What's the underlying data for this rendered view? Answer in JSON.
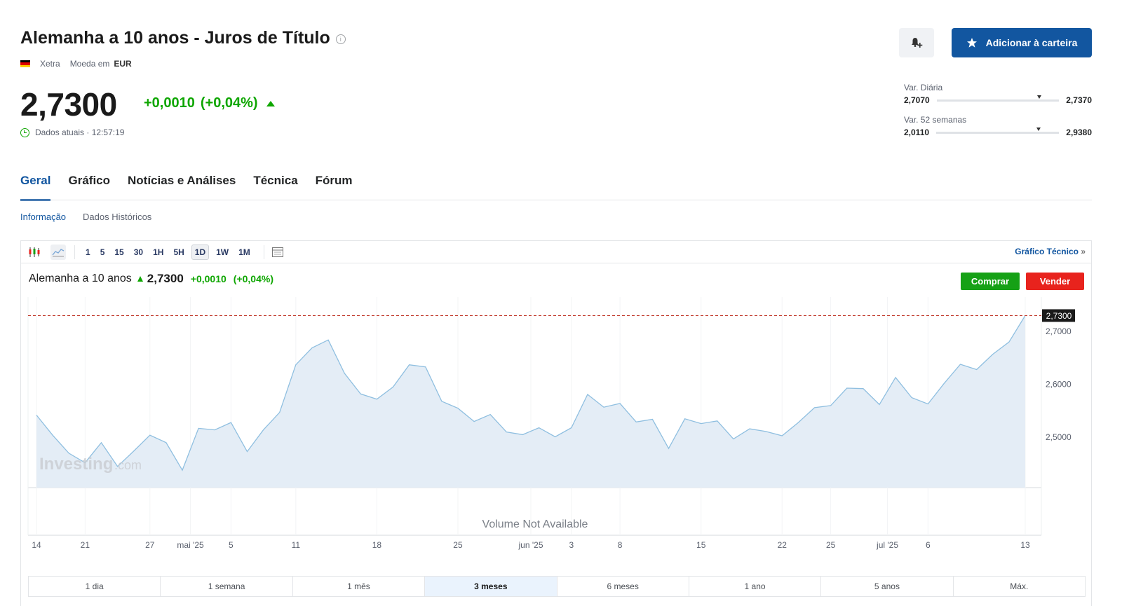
{
  "header": {
    "title": "Alemanha a 10 anos - Juros de Título",
    "exchange": "Xetra",
    "currency_prefix": "Moeda em",
    "currency": "EUR",
    "alert_button_icon": "bell-plus-icon",
    "add_button_label": "Adicionar à carteira"
  },
  "quote": {
    "price": "2,7300",
    "change": "+0,0010",
    "change_pct": "(+0,04%)",
    "time_label": "Dados atuais · 12:57:19"
  },
  "ranges": {
    "daily": {
      "label": "Var. Diária",
      "low": "2,7070",
      "high": "2,7370",
      "position": 0.84
    },
    "week52": {
      "label": "Var. 52 semanas",
      "low": "2,0110",
      "high": "2,9380",
      "position": 0.83
    }
  },
  "tabs": [
    "Geral",
    "Gráfico",
    "Notícias e Análises",
    "Técnica",
    "Fórum"
  ],
  "active_tab": "Geral",
  "subtabs": [
    "Informação",
    "Dados Históricos"
  ],
  "chart_toolbar": {
    "intervals": [
      "1",
      "5",
      "15",
      "30",
      "1H",
      "5H",
      "1D",
      "1W",
      "1M"
    ],
    "active_interval": "1D",
    "tech_link": "Gráfico Técnico",
    "tech_link_arrow": "»"
  },
  "chart_header": {
    "name": "Alemanha a 10 anos",
    "price": "2,7300",
    "change": "+0,0010",
    "change_pct": "(+0,04%)",
    "buy_label": "Comprar",
    "sell_label": "Vender",
    "watermark": "Investing",
    "watermark_suffix": ".com",
    "volume_note": "Volume Not Available",
    "last_price_tag": "2,7300"
  },
  "periods": [
    "1 dia",
    "1 semana",
    "1 mês",
    "3 meses",
    "6 meses",
    "1 ano",
    "5 anos",
    "Máx."
  ],
  "active_period": "3 meses",
  "colors": {
    "accent": "#1256a0",
    "up": "#0ea600",
    "buy": "#16a116",
    "sell": "#e8231d",
    "line": "#8fbfe0",
    "area": "#e4edf6",
    "price_line": "#c0392b"
  },
  "chart_data": {
    "type": "area",
    "title": "Alemanha a 10 anos",
    "y_ticks": [
      "2,7000",
      "2,6000",
      "2,5000"
    ],
    "y_tick_values": [
      2.7,
      2.6,
      2.5
    ],
    "ylim": [
      2.405,
      2.765
    ],
    "x_tick_labels": [
      "14",
      "21",
      "27",
      "mai '25",
      "5",
      "11",
      "18",
      "25",
      "jun '25",
      "3",
      "8",
      "15",
      "22",
      "25",
      "jul '25",
      "6",
      "13"
    ],
    "x_tick_index": [
      0,
      3,
      7,
      9.5,
      12,
      16,
      21,
      26,
      30.5,
      33,
      36,
      41,
      46,
      49,
      52.5,
      55,
      61
    ],
    "series": [
      {
        "values": [
          2.542,
          2.504,
          2.47,
          2.452,
          2.49,
          2.445,
          2.474,
          2.504,
          2.49,
          2.438,
          2.517,
          2.514,
          2.528,
          2.473,
          2.514,
          2.547,
          2.637,
          2.669,
          2.684,
          2.621,
          2.582,
          2.572,
          2.595,
          2.637,
          2.633,
          2.568,
          2.555,
          2.53,
          2.543,
          2.51,
          2.505,
          2.518,
          2.501,
          2.518,
          2.581,
          2.557,
          2.564,
          2.529,
          2.534,
          2.479,
          2.535,
          2.526,
          2.531,
          2.497,
          2.516,
          2.511,
          2.503,
          2.528,
          2.556,
          2.56,
          2.593,
          2.592,
          2.562,
          2.613,
          2.575,
          2.563,
          2.602,
          2.638,
          2.628,
          2.657,
          2.68,
          2.73
        ]
      }
    ]
  }
}
